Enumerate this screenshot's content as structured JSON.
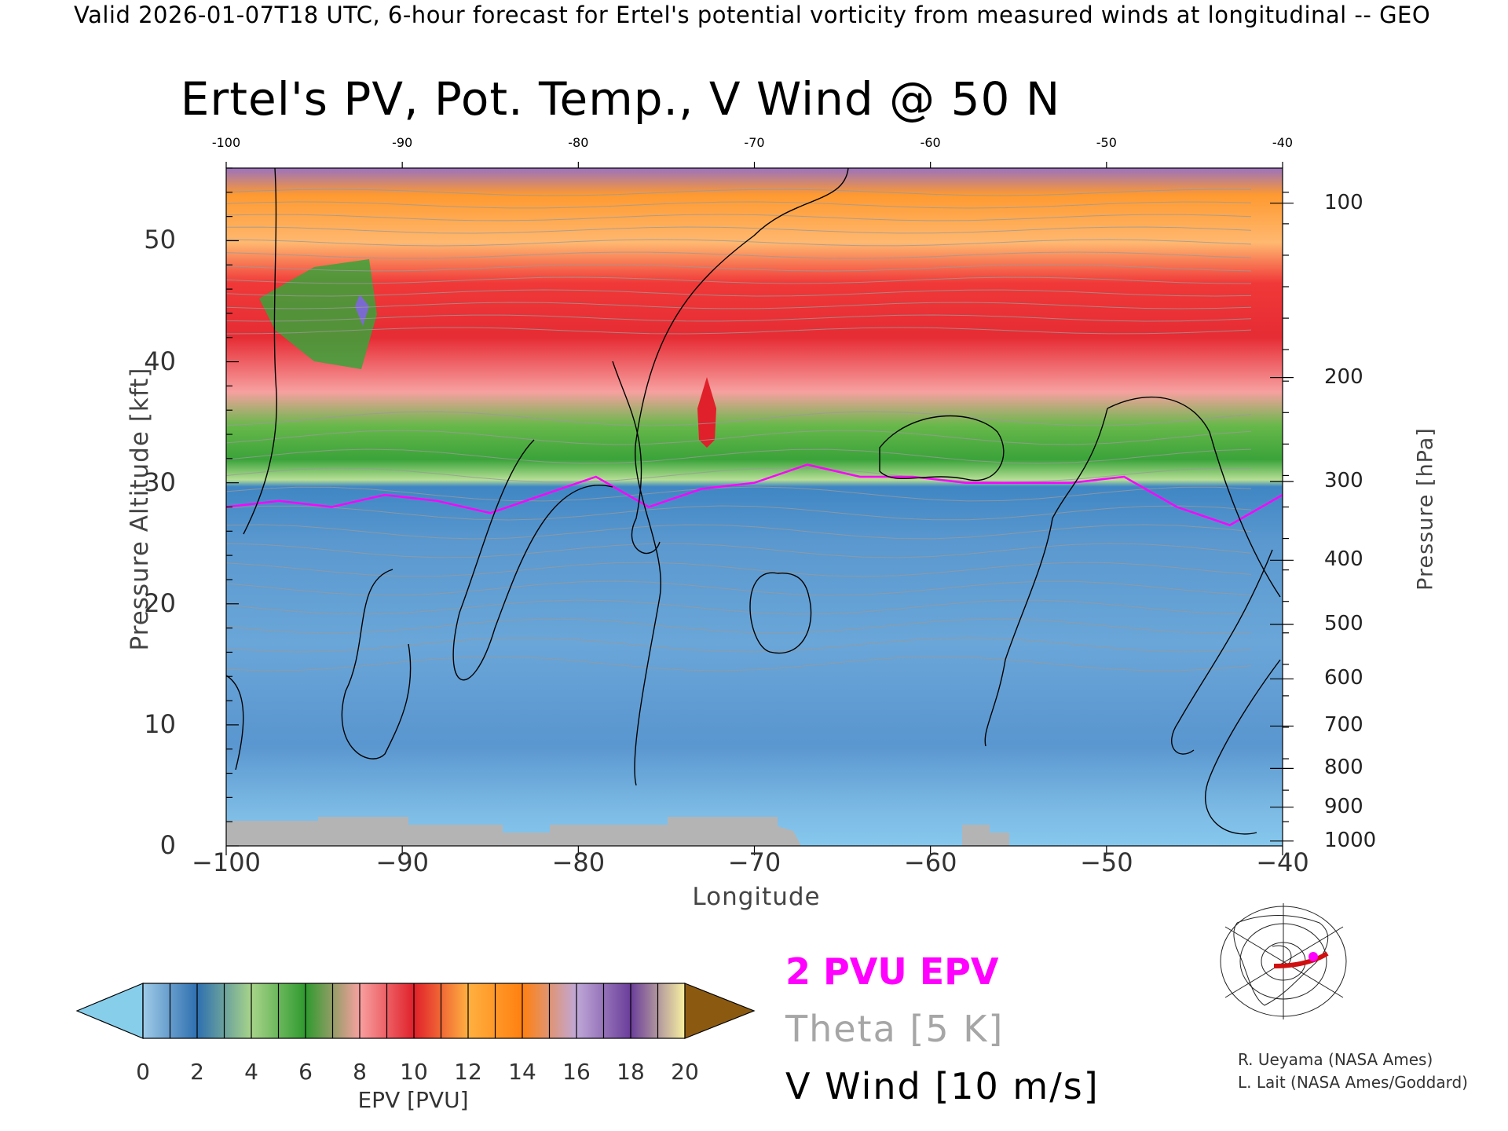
{
  "header": {
    "valid_line": "Valid 2026-01-07T18 UTC, 6-hour forecast for Ertel's potential vorticity from measured winds at longitudinal -- GEO"
  },
  "chart_data": {
    "type": "heatmap",
    "title": "Ertel's PV, Pot. Temp., V Wind @ 50 N",
    "xlabel": "Longitude",
    "ylabel": "Pressure Altitude [kft]",
    "y2label": "Pressure [hPa]",
    "xlim": [
      -100,
      -40
    ],
    "ylim": [
      0,
      56
    ],
    "x_ticks": [
      "−100",
      "−90",
      "−80",
      "−70",
      "−60",
      "−50",
      "−40"
    ],
    "x_tick_values": [
      -100,
      -90,
      -80,
      -70,
      -60,
      -50,
      -40
    ],
    "top_ticks": [
      "-100",
      "-90",
      "-80",
      "-70",
      "-60",
      "-50",
      "-40"
    ],
    "y_ticks": [
      "0",
      "10",
      "20",
      "30",
      "40",
      "50"
    ],
    "y_tick_values": [
      0,
      10,
      20,
      30,
      40,
      50
    ],
    "pressure_ticks": [
      {
        "label": "100",
        "kft": 53.1
      },
      {
        "label": "200",
        "kft": 38.7
      },
      {
        "label": "300",
        "kft": 30.1
      },
      {
        "label": "400",
        "kft": 23.6
      },
      {
        "label": "500",
        "kft": 18.3
      },
      {
        "label": "600",
        "kft": 13.8
      },
      {
        "label": "700",
        "kft": 9.9
      },
      {
        "label": "800",
        "kft": 6.4
      },
      {
        "label": "900",
        "kft": 3.2
      },
      {
        "label": "1000",
        "kft": 0.4
      }
    ],
    "tropopause_2pvu_kft": [
      {
        "lon": -100,
        "kft": 28.0
      },
      {
        "lon": -97,
        "kft": 28.5
      },
      {
        "lon": -94,
        "kft": 28.0
      },
      {
        "lon": -91,
        "kft": 29.0
      },
      {
        "lon": -88,
        "kft": 28.5
      },
      {
        "lon": -85,
        "kft": 27.5
      },
      {
        "lon": -82,
        "kft": 29.0
      },
      {
        "lon": -79,
        "kft": 30.5
      },
      {
        "lon": -76,
        "kft": 28.0
      },
      {
        "lon": -73,
        "kft": 29.5
      },
      {
        "lon": -70,
        "kft": 30.0
      },
      {
        "lon": -67,
        "kft": 31.5
      },
      {
        "lon": -64,
        "kft": 30.5
      },
      {
        "lon": -61,
        "kft": 30.5
      },
      {
        "lon": -58,
        "kft": 30.0
      },
      {
        "lon": -55,
        "kft": 30.0
      },
      {
        "lon": -52,
        "kft": 30.0
      },
      {
        "lon": -49,
        "kft": 30.5
      },
      {
        "lon": -46,
        "kft": 28.0
      },
      {
        "lon": -43,
        "kft": 26.5
      },
      {
        "lon": -40,
        "kft": 29.0
      }
    ],
    "colorbar": {
      "label": "EPV [PVU]",
      "ticks": [
        "0",
        "2",
        "4",
        "6",
        "8",
        "10",
        "12",
        "14",
        "16",
        "18",
        "20"
      ],
      "colors": [
        "#87ceeb",
        "#2e6fb0",
        "#a8d48a",
        "#2e9a2e",
        "#f8a0a0",
        "#e0202a",
        "#ffb040",
        "#ff8010",
        "#c0a8d8",
        "#6a3d9a",
        "#f8f0a0",
        "#8b5a10"
      ]
    },
    "legend": {
      "epv": "2 PVU EPV",
      "theta": "Theta [5 K]",
      "vwind": "V Wind [10 m/s]",
      "colors": {
        "epv": "#ff00ff",
        "theta": "#a6a6a6",
        "vwind": "#000000"
      }
    }
  },
  "credits": {
    "line1": "R. Ueyama (NASA Ames)",
    "line2": "L. Lait (NASA Ames/Goddard)"
  }
}
